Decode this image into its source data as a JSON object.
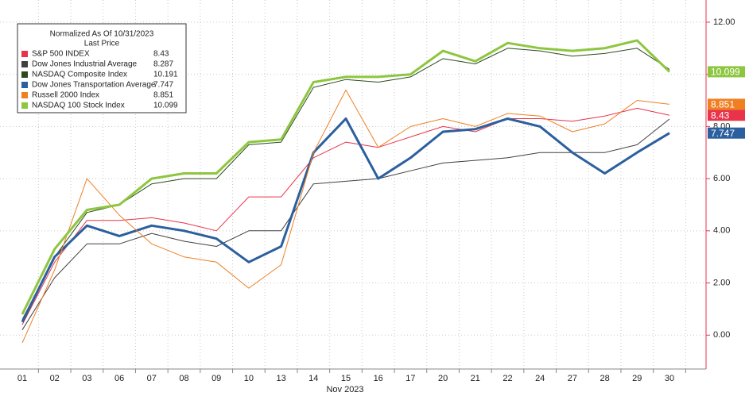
{
  "chart_data": {
    "type": "line",
    "legend_title": "Normalized As Of 10/31/2023",
    "legend_subtitle": "Last Price",
    "x_label": "Nov 2023",
    "categories": [
      "01",
      "02",
      "03",
      "06",
      "07",
      "08",
      "09",
      "10",
      "13",
      "14",
      "15",
      "16",
      "17",
      "20",
      "21",
      "22",
      "24",
      "27",
      "28",
      "29",
      "30"
    ],
    "ylim": [
      -1.3,
      12.85
    ],
    "yticks": [
      {
        "value": 0,
        "label": "0.00"
      },
      {
        "value": 2,
        "label": "2.00"
      },
      {
        "value": 4,
        "label": "4.00"
      },
      {
        "value": 6,
        "label": "6.00"
      },
      {
        "value": 8,
        "label": "8.00"
      },
      {
        "value": 10,
        "label": "10.00"
      },
      {
        "value": 12,
        "label": "12.00"
      }
    ],
    "grid": true,
    "legend": "upper left",
    "series": [
      {
        "name": "S&P 500 INDEX",
        "color": "#e8334a",
        "width": 1,
        "last_price": 8.43,
        "tag": true,
        "values": [
          0.4,
          2.8,
          4.4,
          4.4,
          4.5,
          4.3,
          4.0,
          5.3,
          5.3,
          6.8,
          7.4,
          7.2,
          7.6,
          8.0,
          7.8,
          8.3,
          8.3,
          8.2,
          8.4,
          8.7,
          8.43
        ]
      },
      {
        "name": "Dow Jones Industrial Average",
        "color": "#404040",
        "width": 1,
        "last_price": 8.287,
        "tag": false,
        "values": [
          0.2,
          2.2,
          3.5,
          3.5,
          3.9,
          3.6,
          3.4,
          4.0,
          4.0,
          5.8,
          5.9,
          6.0,
          6.3,
          6.6,
          6.7,
          6.8,
          7.0,
          7.0,
          7.0,
          7.3,
          8.287
        ]
      },
      {
        "name": "NASDAQ Composite Index",
        "color": "#2d4a1e",
        "width": 1,
        "last_price": 10.191,
        "tag": false,
        "values": [
          0.6,
          3.0,
          4.7,
          5.0,
          5.8,
          6.0,
          6.0,
          7.3,
          7.4,
          9.5,
          9.8,
          9.7,
          9.9,
          10.6,
          10.4,
          11.0,
          10.9,
          10.7,
          10.8,
          11.0,
          10.191
        ]
      },
      {
        "name": "Dow Jones Transportation Average",
        "color": "#2b5f9e",
        "width": 3,
        "last_price": 7.747,
        "tag": true,
        "values": [
          0.5,
          3.0,
          4.2,
          3.8,
          4.2,
          4.0,
          3.7,
          2.8,
          3.4,
          7.0,
          8.3,
          6.0,
          6.8,
          7.8,
          7.9,
          8.3,
          8.0,
          7.0,
          6.2,
          7.0,
          7.747
        ]
      },
      {
        "name": "Russell 2000 Index",
        "color": "#f07f22",
        "width": 1,
        "last_price": 8.851,
        "tag": true,
        "values": [
          -0.3,
          2.5,
          6.0,
          4.6,
          3.5,
          3.0,
          2.8,
          1.8,
          2.7,
          7.0,
          9.4,
          7.2,
          8.0,
          8.3,
          8.0,
          8.5,
          8.4,
          7.8,
          8.1,
          9.0,
          8.851
        ]
      },
      {
        "name": "NASDAQ 100 Stock Index",
        "color": "#8dc63f",
        "width": 3,
        "last_price": 10.099,
        "tag": true,
        "values": [
          0.8,
          3.3,
          4.8,
          5.0,
          6.0,
          6.2,
          6.2,
          7.4,
          7.5,
          9.7,
          9.9,
          9.9,
          10.0,
          10.9,
          10.5,
          11.2,
          11.0,
          10.9,
          11.0,
          11.3,
          10.099
        ]
      }
    ]
  }
}
